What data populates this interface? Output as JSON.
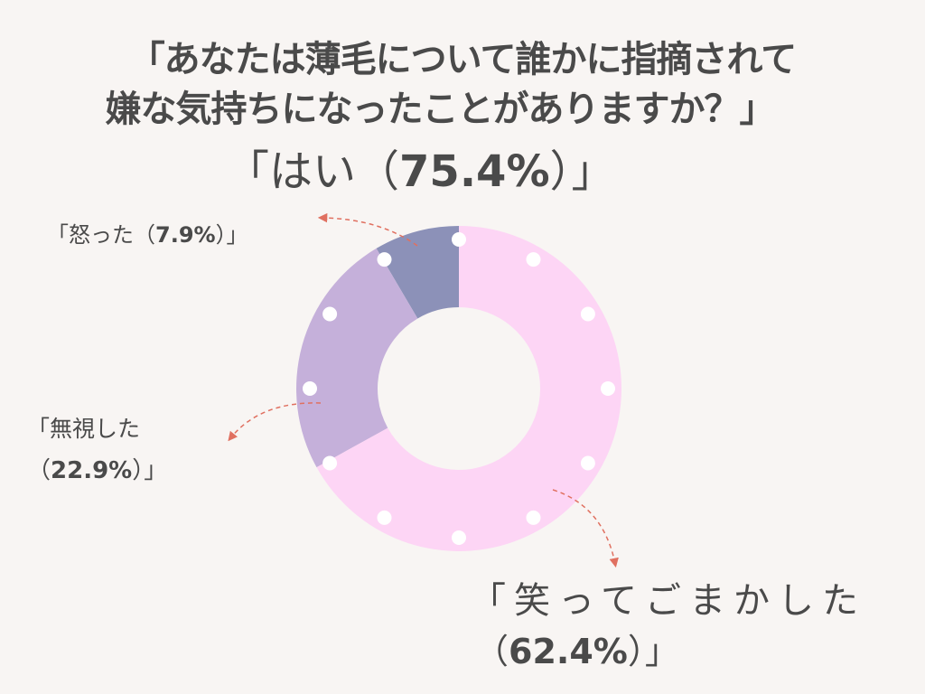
{
  "title": {
    "line1": "「あなたは薄毛について誰かに指摘されて",
    "line2": "嫌な気持ちになったことがありますか？」"
  },
  "headline": {
    "open": "「はい（",
    "value": "75.4%",
    "close": "）」"
  },
  "chart_data": {
    "type": "pie",
    "donut": true,
    "categories": [
      "怒った",
      "無視した",
      "笑ってごまかした"
    ],
    "values": [
      7.9,
      22.9,
      62.4
    ],
    "colors": [
      "#8c91b8",
      "#c5b0da",
      "#fdd5f5"
    ],
    "dot_color": "#ffffff",
    "arrow_color": "#e07060"
  },
  "labels": {
    "angry": {
      "prefix": "「怒った（",
      "value": "7.9%",
      "suffix": "）」"
    },
    "ignore": {
      "line1": "「無視した",
      "prefix": "（",
      "value": "22.9%",
      "suffix": "）」"
    },
    "laugh": {
      "line1": "「笑ってごまかした",
      "prefix": "（",
      "value": "62.4%",
      "suffix": "）」"
    }
  }
}
